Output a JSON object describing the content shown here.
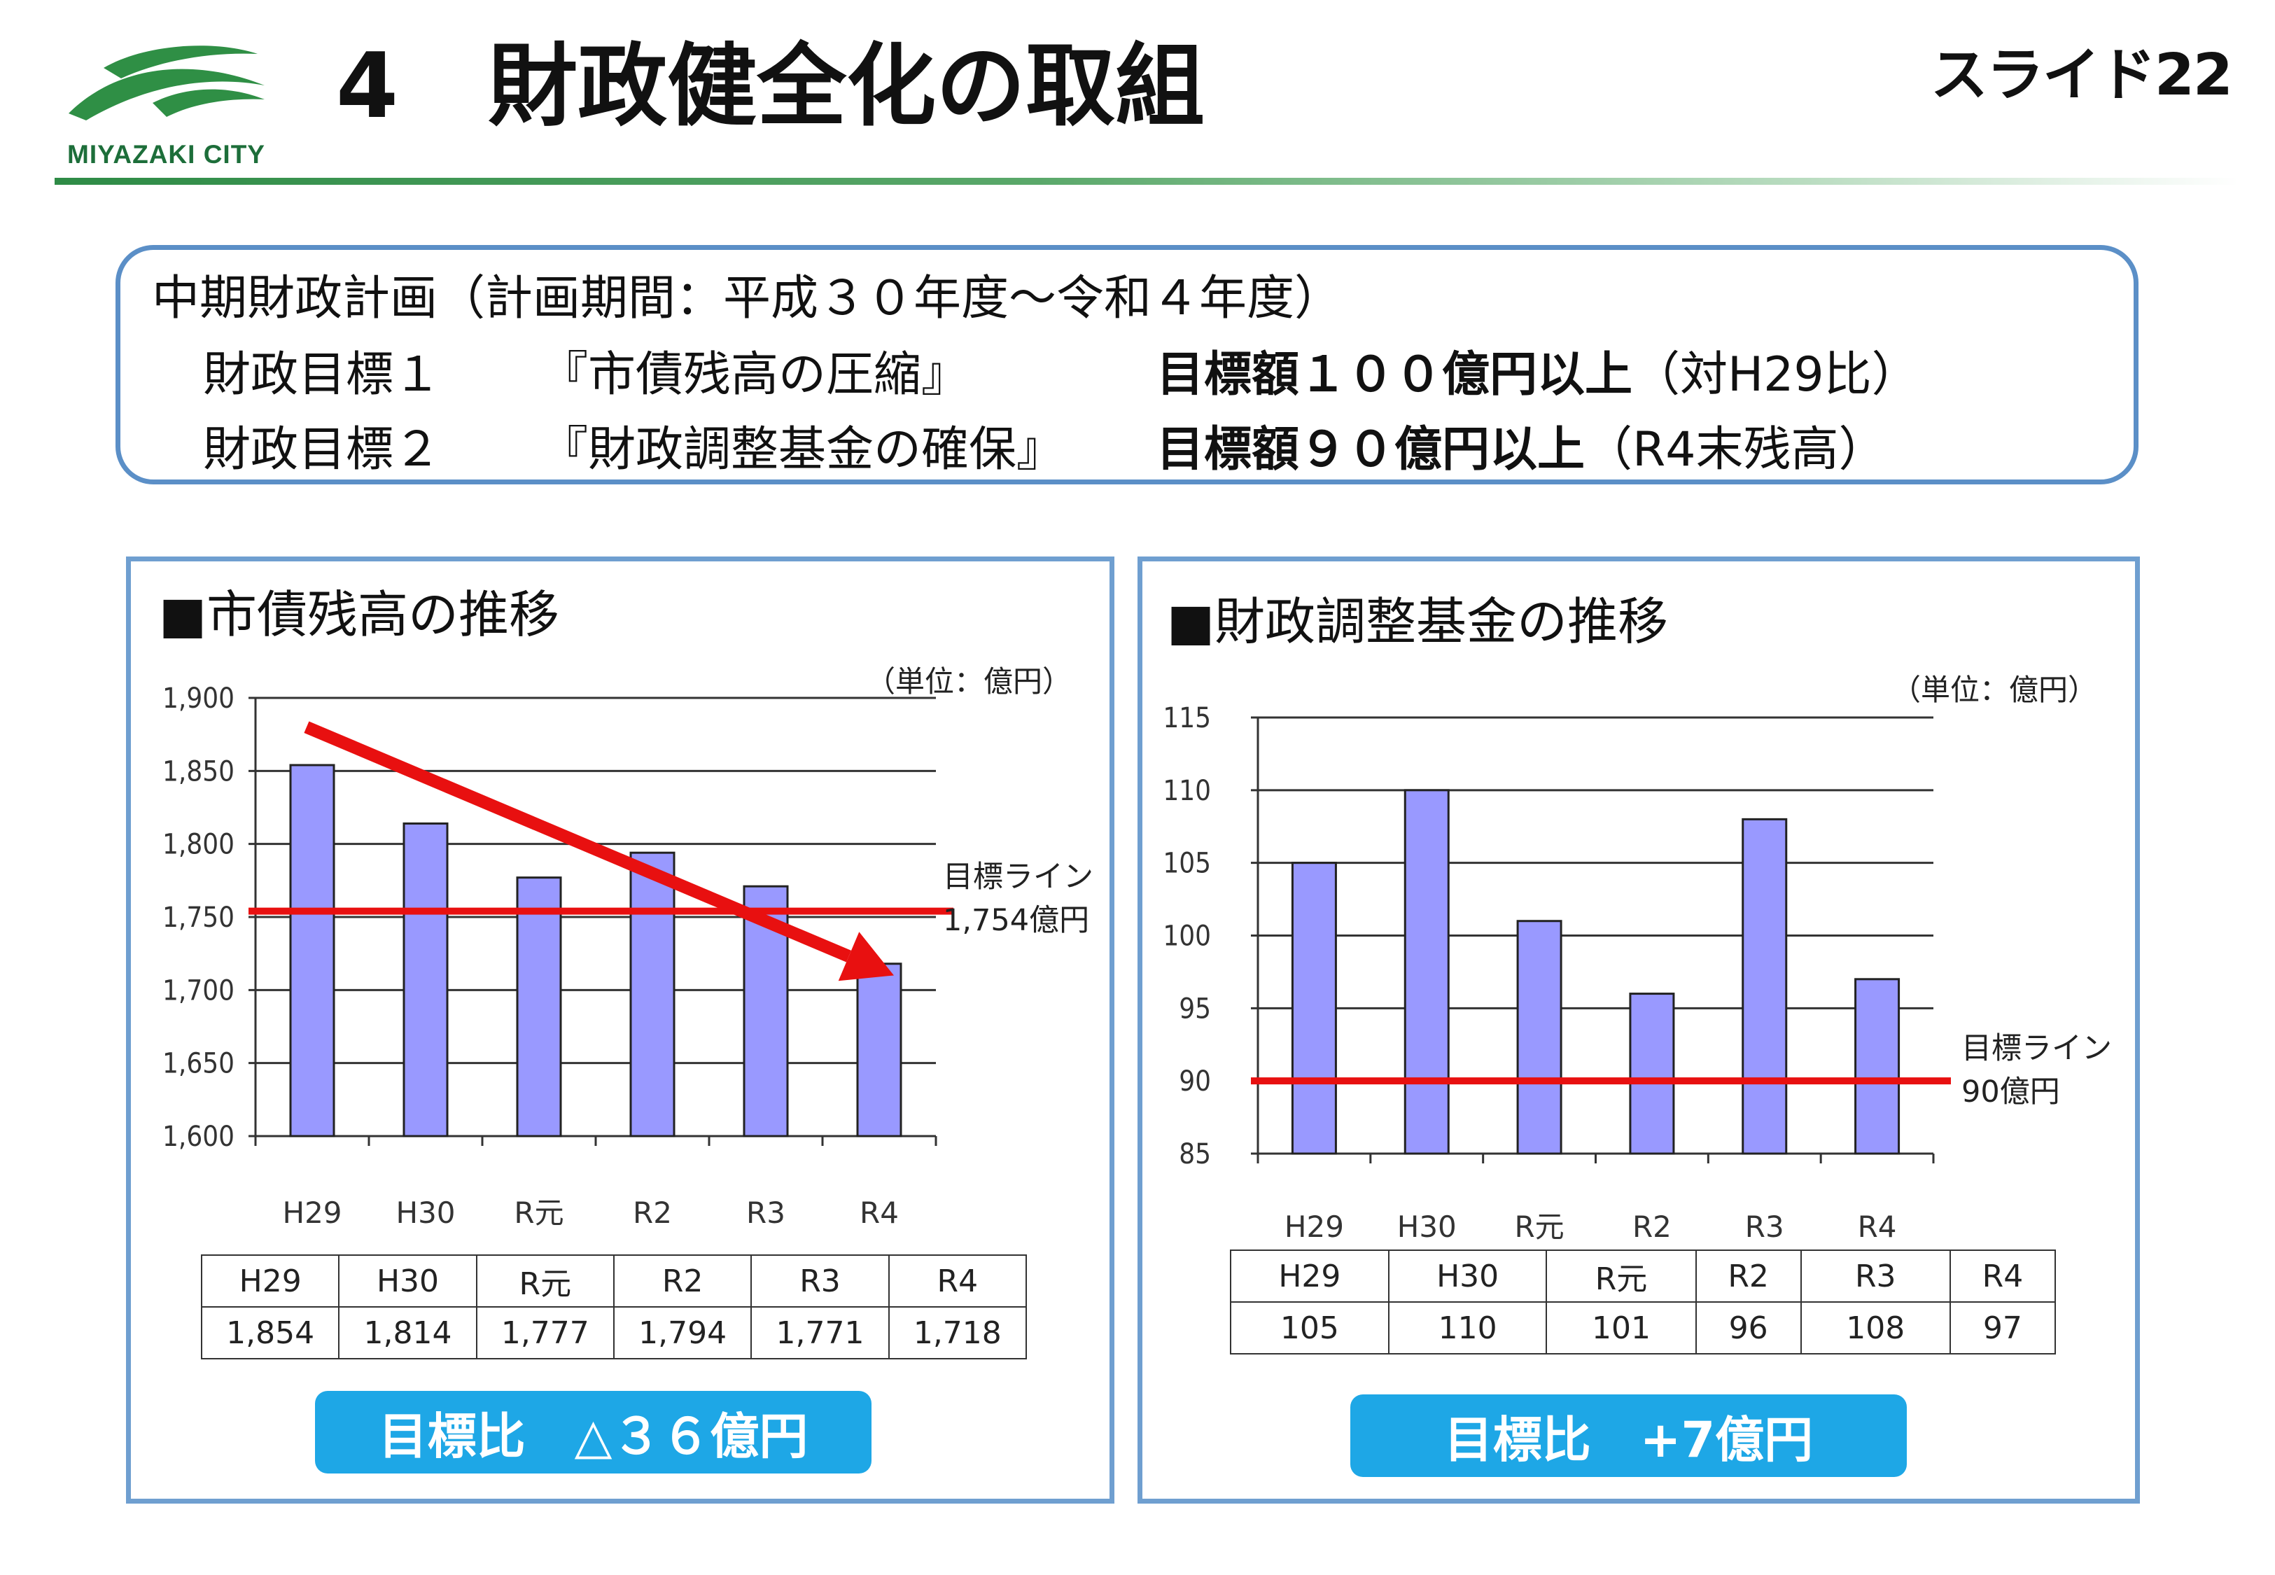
{
  "header": {
    "logo_text": "MIYAZAKI  CITY",
    "title": "4　財政健全化の取組",
    "slide_number": "スライド22"
  },
  "plan": {
    "heading": "中期財政計画（計画期間：平成３０年度～令和４年度）",
    "goals": [
      {
        "label": "財政目標１",
        "name": "『市債残高の圧縮』",
        "target": "目標額１００億円以上",
        "note": "（対H29比）"
      },
      {
        "label": "財政目標２",
        "name": "『財政調整基金の確保』",
        "target": "目標額９０億円以上",
        "note": "（R4末残高）"
      }
    ]
  },
  "colors": {
    "bar": "#9999ff",
    "target_line": "#e81010",
    "badge": "#1ea7e6",
    "frame": "#6f9fd0"
  },
  "chart_data": [
    {
      "type": "bar",
      "title": "■市債残高の推移",
      "unit": "（単位：億円）",
      "categories": [
        "H29",
        "H30",
        "R元",
        "R2",
        "R3",
        "R4"
      ],
      "values": [
        1854,
        1814,
        1777,
        1794,
        1771,
        1718
      ],
      "value_labels": [
        "1,854",
        "1,814",
        "1,777",
        "1,794",
        "1,771",
        "1,718"
      ],
      "ylim": [
        1600,
        1900
      ],
      "yticks": [
        1600,
        1650,
        1700,
        1750,
        1800,
        1850,
        1900
      ],
      "ytick_labels": [
        "1,600",
        "1,650",
        "1,700",
        "1,750",
        "1,800",
        "1,850",
        "1,900"
      ],
      "grid": true,
      "target_line": {
        "value": 1754,
        "label_line1": "目標ライン",
        "label_line2": "1,754億円"
      },
      "trend_arrow": true,
      "result": "目標比　△３６億円"
    },
    {
      "type": "bar",
      "title": "■財政調整基金の推移",
      "unit": "（単位：億円）",
      "categories": [
        "H29",
        "H30",
        "R元",
        "R2",
        "R3",
        "R4"
      ],
      "values": [
        105,
        110,
        101,
        96,
        108,
        97
      ],
      "value_labels": [
        "105",
        "110",
        "101",
        "96",
        "108",
        "97"
      ],
      "ylim": [
        85,
        115
      ],
      "yticks": [
        85,
        90,
        95,
        100,
        105,
        110,
        115
      ],
      "ytick_labels": [
        "85",
        "90",
        "95",
        "100",
        "105",
        "110",
        "115"
      ],
      "grid": true,
      "target_line": {
        "value": 90,
        "label_line1": "目標ライン",
        "label_line2": "90億円"
      },
      "trend_arrow": false,
      "result": "目標比　+7億円"
    }
  ]
}
